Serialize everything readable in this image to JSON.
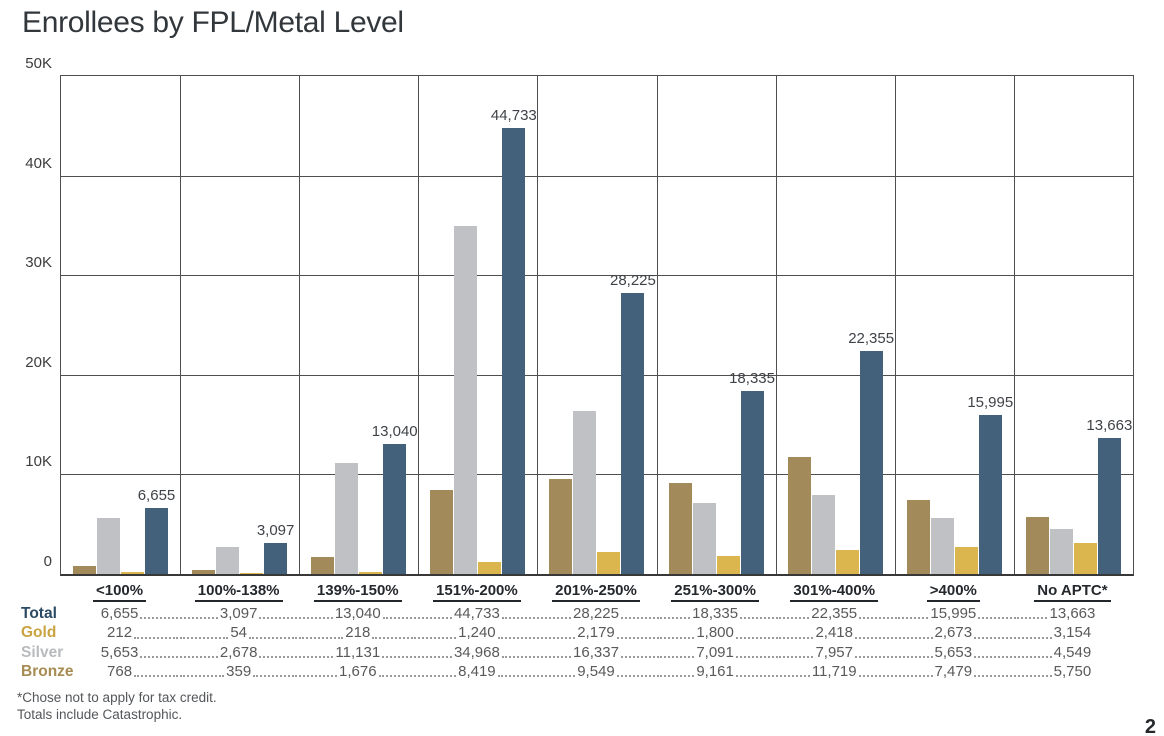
{
  "title": "Enrollees by FPL/Metal Level",
  "page_number": "2",
  "footnotes": [
    "*Chose not to apply for tax credit.",
    "Totals include Catastrophic."
  ],
  "chart_data": {
    "type": "bar",
    "title": "Enrollees by FPL/Metal Level",
    "categories": [
      "<100%",
      "100%-138%",
      "139%-150%",
      "151%-200%",
      "201%-250%",
      "251%-300%",
      "301%-400%",
      ">400%",
      "No APTC*"
    ],
    "series": [
      {
        "name": "Bronze",
        "color": "#A28A5B",
        "values": [
          768,
          359,
          1676,
          8419,
          9549,
          9161,
          11719,
          7479,
          5750
        ]
      },
      {
        "name": "Silver",
        "color": "#BFC1C4",
        "values": [
          5653,
          2678,
          11131,
          34968,
          16337,
          7091,
          7957,
          5653,
          4549
        ]
      },
      {
        "name": "Gold",
        "color": "#DBB54D",
        "values": [
          212,
          54,
          218,
          1240,
          2179,
          1800,
          2418,
          2673,
          3154
        ]
      },
      {
        "name": "Total",
        "color": "#44617B",
        "values": [
          6655,
          3097,
          13040,
          44733,
          28225,
          18335,
          22355,
          15995,
          13663
        ]
      }
    ],
    "bar_labels_series": "Total",
    "bar_label_values": [
      "6,655",
      "3,097",
      "13,040",
      "44,733",
      "28,225",
      "18,335",
      "22,355",
      "15,995",
      "13,663"
    ],
    "y_ticks": [
      "0",
      "10K",
      "20K",
      "30K",
      "40K",
      "50K"
    ],
    "ylim": [
      0,
      50000
    ],
    "grid": true,
    "legend_position": "table-left"
  },
  "table": {
    "rows": [
      {
        "label": "Total",
        "color": "#2C4A63",
        "values": [
          "6,655",
          "3,097",
          "13,040",
          "44,733",
          "28,225",
          "18,335",
          "22,355",
          "15,995",
          "13,663"
        ]
      },
      {
        "label": "Gold",
        "color": "#C9A33F",
        "values": [
          "212",
          "54",
          "218",
          "1,240",
          "2,179",
          "1,800",
          "2,418",
          "2,673",
          "3,154"
        ]
      },
      {
        "label": "Silver",
        "color": "#B8BBBE",
        "values": [
          "5,653",
          "2,678",
          "11,131",
          "34,968",
          "16,337",
          "7,091",
          "7,957",
          "5,653",
          "4,549"
        ]
      },
      {
        "label": "Bronze",
        "color": "#A68C52",
        "values": [
          "768",
          "359",
          "1,676",
          "8,419",
          "9,549",
          "9,161",
          "11,719",
          "7,479",
          "5,750"
        ]
      }
    ]
  }
}
